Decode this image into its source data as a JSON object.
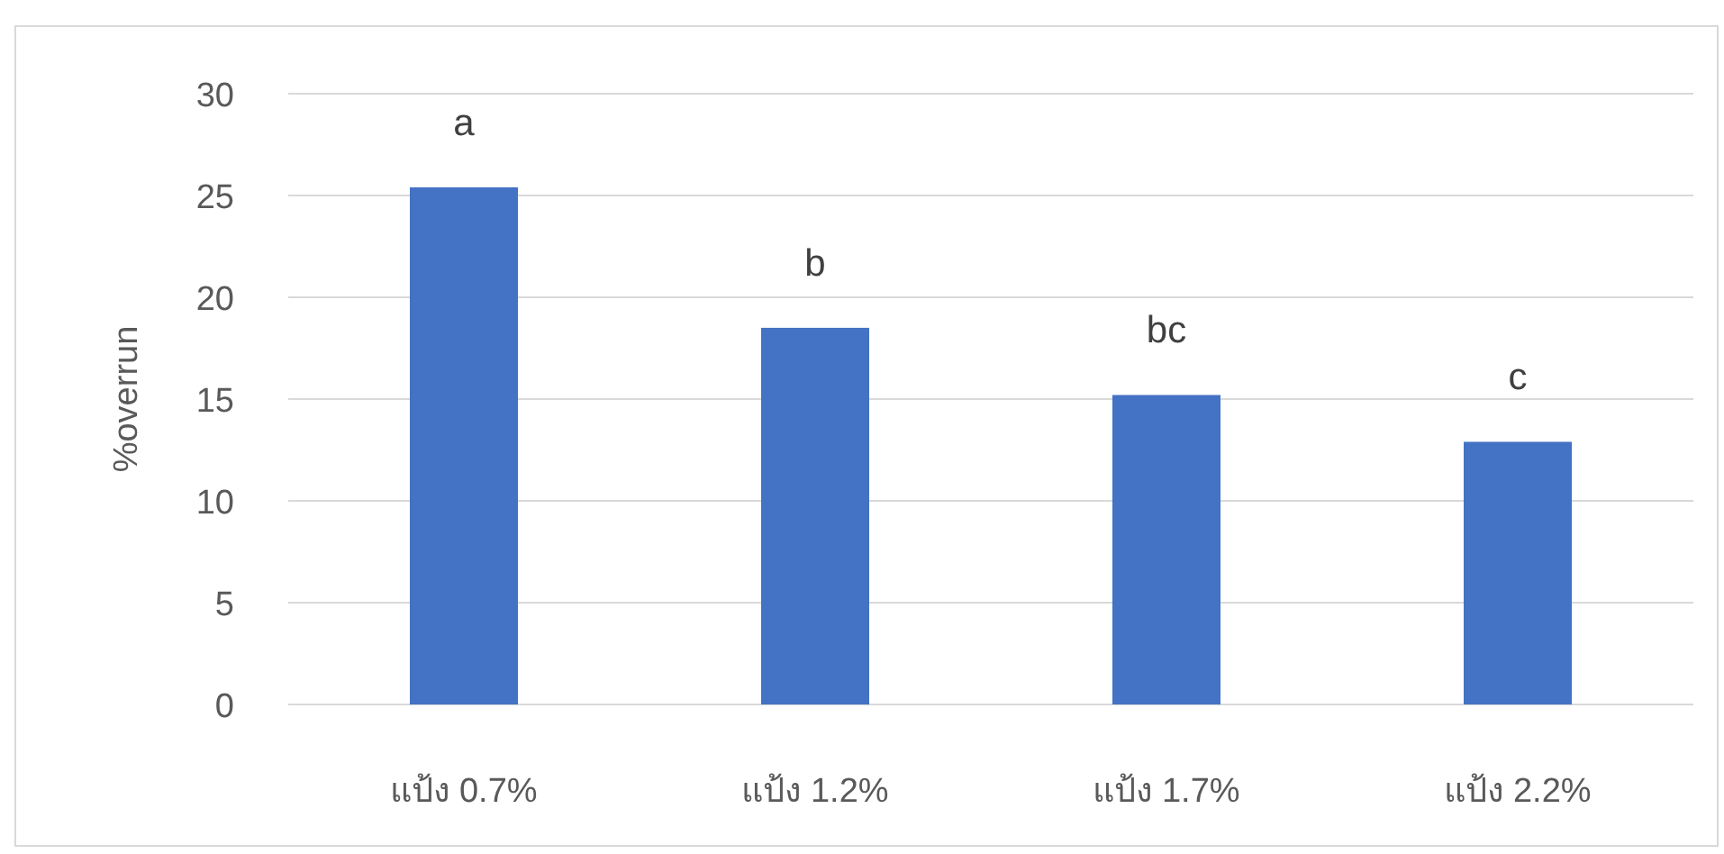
{
  "chart_data": {
    "type": "bar",
    "ylabel": "%overrun",
    "categories": [
      "แป้ง 0.7%",
      "แป้ง 1.2%",
      "แป้ง 1.7%",
      "แป้ง 2.2%"
    ],
    "series": [
      {
        "color": "#4472c4",
        "values": [
          25.4,
          18.5,
          15.2,
          12.9
        ]
      }
    ],
    "ylim": [
      0,
      30
    ],
    "yticks": [
      0,
      5,
      10,
      15,
      20,
      25,
      30
    ],
    "grid": "y",
    "annotations": [
      "a",
      "b",
      "bc",
      "c"
    ]
  }
}
